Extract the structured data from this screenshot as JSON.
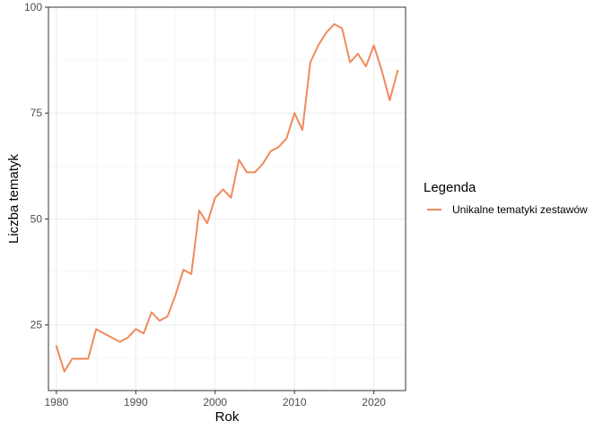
{
  "chart_data": {
    "type": "line",
    "xlabel": "Rok",
    "ylabel": "Liczba tematyk",
    "xlim": [
      1979,
      2024
    ],
    "ylim": [
      9.5,
      100
    ],
    "x_ticks": [
      1980,
      1990,
      2000,
      2010,
      2020
    ],
    "y_ticks": [
      25,
      50,
      75,
      100
    ],
    "grid": true,
    "legend": {
      "title": "Legenda",
      "placement": "right"
    },
    "series": [
      {
        "name": "Unikalne tematyki zestawów",
        "color": "#f08a5d",
        "x": [
          1980,
          1981,
          1982,
          1983,
          1984,
          1985,
          1986,
          1987,
          1988,
          1989,
          1990,
          1991,
          1992,
          1993,
          1994,
          1995,
          1996,
          1997,
          1998,
          1999,
          2000,
          2001,
          2002,
          2003,
          2004,
          2005,
          2006,
          2007,
          2008,
          2009,
          2010,
          2011,
          2012,
          2013,
          2014,
          2015,
          2016,
          2017,
          2018,
          2019,
          2020,
          2021,
          2022,
          2023
        ],
        "y": [
          20,
          14,
          17,
          17,
          17,
          24,
          23,
          22,
          21,
          22,
          24,
          23,
          28,
          26,
          27,
          32,
          38,
          37,
          52,
          49,
          55,
          57,
          55,
          64,
          61,
          61,
          63,
          66,
          67,
          69,
          75,
          71,
          87,
          91,
          94,
          96,
          95,
          87,
          89,
          86,
          91,
          85,
          78,
          85
        ]
      }
    ]
  }
}
